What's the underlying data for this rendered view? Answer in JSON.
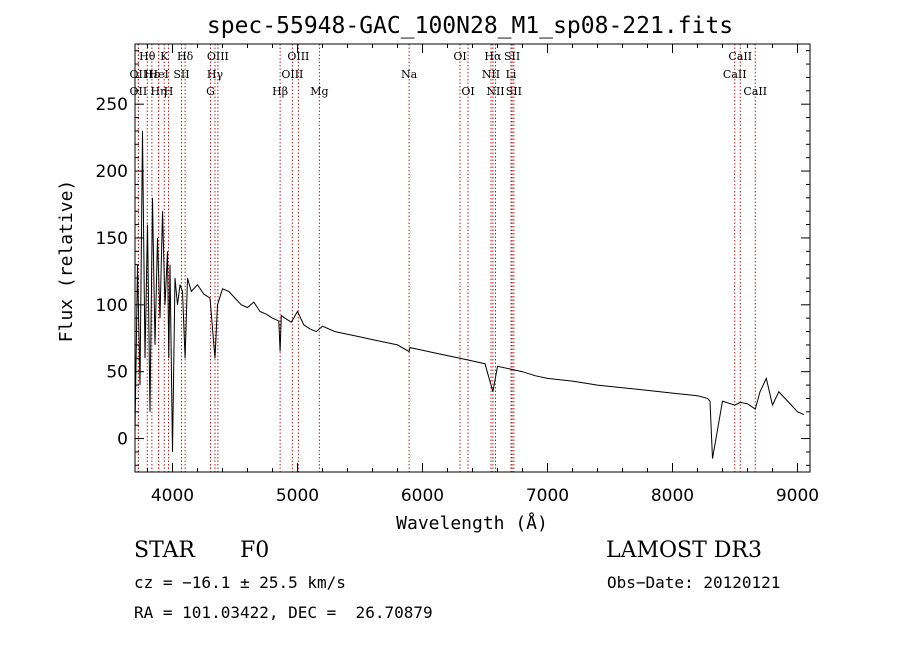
{
  "chart_data": {
    "type": "line",
    "title": "spec-55948-GAC_100N28_M1_sp08-221.fits",
    "xlabel": "Wavelength (Å)",
    "ylabel": "Flux (relative)",
    "xlim": [
      3700,
      9100
    ],
    "ylim": [
      -25,
      295
    ],
    "x_ticks": [
      4000,
      5000,
      6000,
      7000,
      8000,
      9000
    ],
    "y_ticks": [
      0,
      50,
      100,
      150,
      200,
      250
    ],
    "series": [
      {
        "name": "flux",
        "x": [
          3700,
          3720,
          3740,
          3760,
          3780,
          3800,
          3820,
          3840,
          3860,
          3880,
          3900,
          3920,
          3940,
          3960,
          3970,
          3980,
          4000,
          4020,
          4040,
          4060,
          4080,
          4101,
          4120,
          4150,
          4200,
          4250,
          4300,
          4340,
          4360,
          4400,
          4450,
          4500,
          4550,
          4600,
          4650,
          4700,
          4750,
          4800,
          4850,
          4861,
          4870,
          4900,
          4950,
          5000,
          5050,
          5100,
          5150,
          5200,
          5300,
          5400,
          5500,
          5600,
          5700,
          5800,
          5893,
          5900,
          6000,
          6100,
          6200,
          6300,
          6400,
          6500,
          6563,
          6600,
          6700,
          6800,
          6900,
          7000,
          7200,
          7400,
          7600,
          7800,
          8000,
          8200,
          8280,
          8300,
          8320,
          8400,
          8498,
          8542,
          8600,
          8662,
          8700,
          8750,
          8800,
          8850,
          8900,
          8950,
          9000,
          9050
        ],
        "y": [
          5,
          130,
          40,
          230,
          60,
          160,
          20,
          180,
          70,
          150,
          90,
          170,
          100,
          140,
          60,
          130,
          -10,
          120,
          100,
          115,
          110,
          60,
          120,
          110,
          115,
          108,
          105,
          60,
          100,
          112,
          110,
          105,
          100,
          98,
          102,
          95,
          93,
          90,
          88,
          65,
          92,
          90,
          87,
          95,
          85,
          82,
          80,
          84,
          80,
          78,
          76,
          74,
          72,
          70,
          65,
          68,
          66,
          64,
          62,
          60,
          58,
          56,
          35,
          54,
          52,
          50,
          47,
          45,
          43,
          40,
          38,
          36,
          34,
          32,
          30,
          28,
          -15,
          28,
          25,
          27,
          26,
          22,
          35,
          45,
          25,
          35,
          30,
          25,
          20,
          18
        ]
      }
    ],
    "line_markers": [
      {
        "label": "Hθ",
        "x": 3798,
        "row": 0
      },
      {
        "label": "OII",
        "x": 3727,
        "row": 1
      },
      {
        "label": "OII",
        "x": 3727,
        "row": 2
      },
      {
        "label": "Hε",
        "x": 3835,
        "row": 1
      },
      {
        "label": "Hη",
        "x": 3889,
        "row": 2
      },
      {
        "label": "K",
        "x": 3934,
        "row": 0
      },
      {
        "label": "HeI",
        "x": 3889,
        "row": 1
      },
      {
        "label": "H",
        "x": 3968,
        "row": 2
      },
      {
        "label": "SII",
        "x": 4072,
        "row": 1
      },
      {
        "label": "Hδ",
        "x": 4101,
        "row": 0
      },
      {
        "label": "OIII",
        "x": 4363,
        "row": 0
      },
      {
        "label": "Hγ",
        "x": 4340,
        "row": 1
      },
      {
        "label": "G",
        "x": 4304,
        "row": 2
      },
      {
        "label": "Hβ",
        "x": 4861,
        "row": 2
      },
      {
        "label": "OIII",
        "x": 5007,
        "row": 0
      },
      {
        "label": "OIII",
        "x": 4959,
        "row": 1
      },
      {
        "label": "Mg",
        "x": 5175,
        "row": 2
      },
      {
        "label": "Na",
        "x": 5893,
        "row": 1
      },
      {
        "label": "OI",
        "x": 6300,
        "row": 0
      },
      {
        "label": "OI",
        "x": 6364,
        "row": 2
      },
      {
        "label": "Hα",
        "x": 6563,
        "row": 0
      },
      {
        "label": "SII",
        "x": 6717,
        "row": 0
      },
      {
        "label": "NII",
        "x": 6548,
        "row": 1
      },
      {
        "label": "Li",
        "x": 6708,
        "row": 1
      },
      {
        "label": "NII",
        "x": 6584,
        "row": 2
      },
      {
        "label": "SII",
        "x": 6731,
        "row": 2
      },
      {
        "label": "CaII",
        "x": 8542,
        "row": 0
      },
      {
        "label": "CaII",
        "x": 8498,
        "row": 1
      },
      {
        "label": "CaII",
        "x": 8662,
        "row": 2
      }
    ],
    "line_marker_color": "#b22222"
  },
  "footer": {
    "object_class": "STAR",
    "subclass": "F0",
    "survey": "LAMOST DR3",
    "redshift": "cz = −16.1 ± 25.5 km/s",
    "obs_date": "Obs−Date: 20120121",
    "coordinates": "RA = 101.03422, DEC =  26.70879"
  }
}
